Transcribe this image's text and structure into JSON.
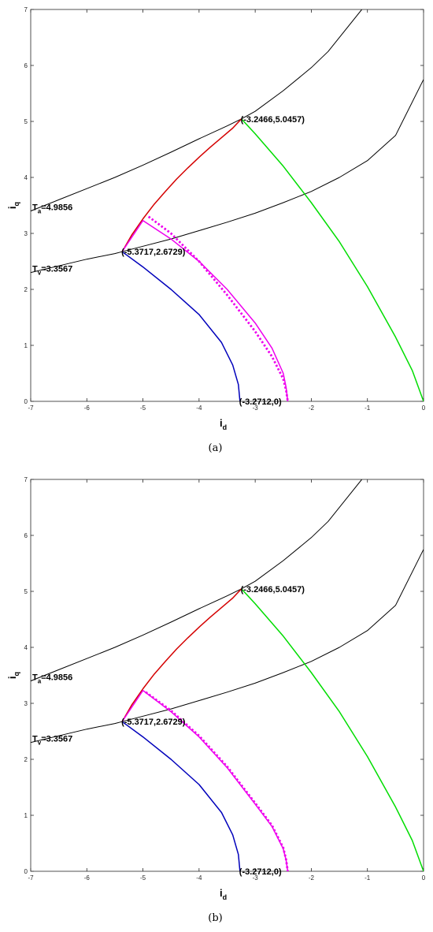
{
  "chart_data": [
    {
      "type": "line",
      "caption": "(a)",
      "xlabel": "i",
      "xlabel_sub": "d",
      "ylabel": "i",
      "ylabel_sub": "q",
      "xlim": [
        -7,
        0
      ],
      "ylim": [
        0,
        7
      ],
      "xticks": [
        -7,
        -6,
        -5,
        -4,
        -3,
        -2,
        -1,
        0
      ],
      "yticks": [
        0,
        1,
        2,
        3,
        4,
        5,
        6,
        7
      ],
      "grid": false,
      "series": [
        {
          "role": "Ta-curve",
          "color": "#000000",
          "dash": false,
          "width": 1,
          "x": [
            -7,
            -6.5,
            -6,
            -5.5,
            -5,
            -4.5,
            -4,
            -3.5,
            -3.2466,
            -3,
            -2.5,
            -2,
            -1.7,
            -1.1
          ],
          "y": [
            3.4,
            3.6,
            3.8,
            4.0,
            4.22,
            4.45,
            4.69,
            4.92,
            5.0457,
            5.18,
            5.55,
            5.96,
            6.25,
            7.0
          ]
        },
        {
          "role": "Tv-curve",
          "color": "#000000",
          "dash": false,
          "width": 1,
          "x": [
            -7,
            -6.5,
            -6,
            -5.5,
            -5.3717,
            -5,
            -4.5,
            -4,
            -3.5,
            -3,
            -2.5,
            -2,
            -1.5,
            -1,
            -0.5,
            0
          ],
          "y": [
            2.3,
            2.42,
            2.54,
            2.64,
            2.6729,
            2.77,
            2.9,
            3.05,
            3.2,
            3.36,
            3.55,
            3.75,
            4.0,
            4.3,
            4.75,
            5.75
          ]
        },
        {
          "role": "red",
          "color": "#d40000",
          "dash": false,
          "width": 1.5,
          "x": [
            -5.3717,
            -5.2,
            -5.0,
            -4.8,
            -4.6,
            -4.4,
            -4.2,
            -4.0,
            -3.8,
            -3.6,
            -3.4,
            -3.2466
          ],
          "y": [
            2.6729,
            2.97,
            3.26,
            3.52,
            3.75,
            3.97,
            4.17,
            4.36,
            4.54,
            4.71,
            4.88,
            5.0457
          ]
        },
        {
          "role": "green",
          "color": "#00dd00",
          "dash": false,
          "width": 1.5,
          "x": [
            -3.2466,
            -3.0,
            -2.5,
            -2.0,
            -1.5,
            -1.0,
            -0.5,
            -0.2,
            0
          ],
          "y": [
            5.0457,
            4.78,
            4.2,
            3.55,
            2.85,
            2.05,
            1.15,
            0.55,
            0
          ]
        },
        {
          "role": "blue",
          "color": "#0000bb",
          "dash": false,
          "width": 1.5,
          "x": [
            -5.3717,
            -5.0,
            -4.5,
            -4.0,
            -3.6,
            -3.4,
            -3.3,
            -3.2712
          ],
          "y": [
            2.6729,
            2.4,
            2.0,
            1.55,
            1.05,
            0.65,
            0.3,
            0
          ]
        },
        {
          "role": "magenta",
          "color": "#ee00ee",
          "dash": false,
          "width": 1.5,
          "x": [
            -5.3717,
            -5.0,
            -5.0,
            -4.5,
            -4.0,
            -3.5,
            -3.0,
            -2.7,
            -2.5,
            -2.45,
            -2.42
          ],
          "y": [
            2.6729,
            3.23,
            3.23,
            2.9,
            2.5,
            2.0,
            1.4,
            0.95,
            0.5,
            0.25,
            0
          ]
        },
        {
          "role": "magenta-dotted",
          "color": "#ee00ee",
          "dash": true,
          "width": 2.8,
          "x": [
            -4.9,
            -4.5,
            -4.0,
            -3.5,
            -3.0,
            -2.7,
            -2.5,
            -2.45,
            -2.42
          ],
          "y": [
            3.3,
            3.0,
            2.5,
            1.9,
            1.25,
            0.8,
            0.4,
            0.2,
            0
          ]
        }
      ],
      "annotations": [
        {
          "text": "(-3.2466,5.0457)",
          "x": -3.2466,
          "y": 5.0457
        },
        {
          "text": "(-5.3717,2.6729)",
          "x": -5.3717,
          "y": 2.6729
        },
        {
          "text": "(-3.2712,0)",
          "x": -3.2712,
          "y": 0
        },
        {
          "text": "T",
          "sub": "a",
          "value": "=4.9856",
          "x": -7,
          "y": 3.4
        },
        {
          "text": "T",
          "sub": "v",
          "value": "=3.3567",
          "x": -7,
          "y": 2.3
        }
      ]
    },
    {
      "type": "line",
      "caption": "(b)",
      "xlabel": "i",
      "xlabel_sub": "d",
      "ylabel": "i",
      "ylabel_sub": "q",
      "xlim": [
        -7,
        0
      ],
      "ylim": [
        0,
        7
      ],
      "xticks": [
        -7,
        -6,
        -5,
        -4,
        -3,
        -2,
        -1,
        0
      ],
      "yticks": [
        0,
        1,
        2,
        3,
        4,
        5,
        6,
        7
      ],
      "grid": false,
      "series": [
        {
          "role": "Ta-curve",
          "color": "#000000",
          "dash": false,
          "width": 1,
          "x": [
            -7,
            -6.5,
            -6,
            -5.5,
            -5,
            -4.5,
            -4,
            -3.5,
            -3.2466,
            -3,
            -2.5,
            -2,
            -1.7,
            -1.1
          ],
          "y": [
            3.4,
            3.6,
            3.8,
            4.0,
            4.22,
            4.45,
            4.69,
            4.92,
            5.0457,
            5.18,
            5.55,
            5.96,
            6.25,
            7.0
          ]
        },
        {
          "role": "Tv-curve",
          "color": "#000000",
          "dash": false,
          "width": 1,
          "x": [
            -7,
            -6.5,
            -6,
            -5.5,
            -5.3717,
            -5,
            -4.5,
            -4,
            -3.5,
            -3,
            -2.5,
            -2,
            -1.5,
            -1,
            -0.5,
            0
          ],
          "y": [
            2.3,
            2.42,
            2.54,
            2.64,
            2.6729,
            2.77,
            2.9,
            3.05,
            3.2,
            3.36,
            3.55,
            3.75,
            4.0,
            4.3,
            4.75,
            5.75
          ]
        },
        {
          "role": "red",
          "color": "#d40000",
          "dash": false,
          "width": 1.5,
          "x": [
            -5.3717,
            -5.2,
            -5.0,
            -4.8,
            -4.6,
            -4.4,
            -4.2,
            -4.0,
            -3.8,
            -3.6,
            -3.4,
            -3.2466
          ],
          "y": [
            2.6729,
            2.97,
            3.26,
            3.52,
            3.75,
            3.97,
            4.17,
            4.36,
            4.54,
            4.71,
            4.88,
            5.0457
          ]
        },
        {
          "role": "green",
          "color": "#00dd00",
          "dash": false,
          "width": 1.5,
          "x": [
            -3.2466,
            -3.0,
            -2.5,
            -2.0,
            -1.5,
            -1.0,
            -0.5,
            -0.2,
            0
          ],
          "y": [
            5.0457,
            4.78,
            4.2,
            3.55,
            2.85,
            2.05,
            1.15,
            0.55,
            0
          ]
        },
        {
          "role": "blue",
          "color": "#0000bb",
          "dash": false,
          "width": 1.5,
          "x": [
            -5.3717,
            -5.0,
            -4.5,
            -4.0,
            -3.6,
            -3.4,
            -3.3,
            -3.2712
          ],
          "y": [
            2.6729,
            2.4,
            2.0,
            1.55,
            1.05,
            0.65,
            0.3,
            0
          ]
        },
        {
          "role": "magenta",
          "color": "#ee00ee",
          "dash": false,
          "width": 1.5,
          "x": [
            -5.3717,
            -5.0,
            -5.0,
            -4.5,
            -4.0,
            -3.5,
            -3.0,
            -2.7,
            -2.5,
            -2.45,
            -2.42
          ],
          "y": [
            2.6729,
            3.23,
            3.23,
            2.85,
            2.4,
            1.85,
            1.2,
            0.8,
            0.4,
            0.2,
            0
          ]
        },
        {
          "role": "magenta-dotted",
          "color": "#ee00ee",
          "dash": true,
          "width": 2.8,
          "x": [
            -4.95,
            -4.5,
            -4.0,
            -3.5,
            -3.0,
            -2.7,
            -2.5,
            -2.45,
            -2.42
          ],
          "y": [
            3.2,
            2.87,
            2.42,
            1.87,
            1.22,
            0.82,
            0.42,
            0.21,
            0
          ]
        }
      ],
      "annotations": [
        {
          "text": "(-3.2466,5.0457)",
          "x": -3.2466,
          "y": 5.0457
        },
        {
          "text": "(-5.3717,2.6729)",
          "x": -5.3717,
          "y": 2.6729
        },
        {
          "text": "(-3.2712,0)",
          "x": -3.2712,
          "y": 0
        },
        {
          "text": "T",
          "sub": "a",
          "value": "=4.9856",
          "x": -7,
          "y": 3.4
        },
        {
          "text": "T",
          "sub": "v",
          "value": "=3.3567",
          "x": -7,
          "y": 2.3
        }
      ]
    }
  ]
}
